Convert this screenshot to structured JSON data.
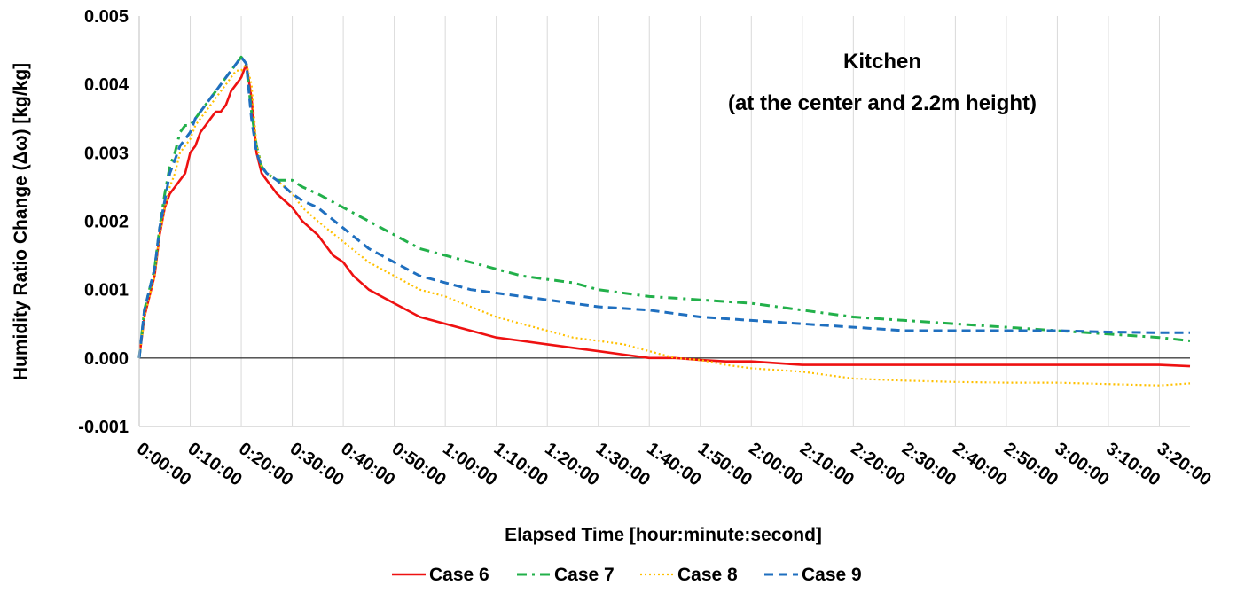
{
  "chart_data": {
    "type": "line",
    "title": "",
    "annotation_lines": [
      "Kitchen",
      "(at the center and 2.2m height)"
    ],
    "xlabel": "Elapsed Time [hour:minute:second]",
    "ylabel": "Humidity Ratio Change (Δω) [kg/kg]",
    "x_unit": "minutes",
    "xlim": [
      0,
      206
    ],
    "ylim": [
      -0.001,
      0.005
    ],
    "x_ticks": [
      0,
      10,
      20,
      30,
      40,
      50,
      60,
      70,
      80,
      90,
      100,
      110,
      120,
      130,
      140,
      150,
      160,
      170,
      180,
      190,
      200
    ],
    "x_tick_labels": [
      "0:00:00",
      "0:10:00",
      "0:20:00",
      "0:30:00",
      "0:40:00",
      "0:50:00",
      "1:00:00",
      "1:10:00",
      "1:20:00",
      "1:30:00",
      "1:40:00",
      "1:50:00",
      "2:00:00",
      "2:10:00",
      "2:20:00",
      "2:30:00",
      "2:40:00",
      "2:50:00",
      "3:00:00",
      "3:10:00",
      "3:20:00"
    ],
    "y_ticks": [
      -0.001,
      0.0,
      0.001,
      0.002,
      0.003,
      0.004,
      0.005
    ],
    "y_tick_labels": [
      "-0.001",
      "0.000",
      "0.001",
      "0.002",
      "0.003",
      "0.004",
      "0.005"
    ],
    "grid": "vertical",
    "legend_position": "bottom",
    "series": [
      {
        "name": "Case 6",
        "color": "#ee1111",
        "dash": "solid",
        "x": [
          0,
          1,
          2,
          3,
          4,
          5,
          6,
          7,
          8,
          9,
          10,
          11,
          12,
          13,
          14,
          15,
          16,
          17,
          18,
          19,
          20,
          21,
          22,
          23,
          24,
          25,
          27,
          30,
          32,
          35,
          38,
          40,
          42,
          45,
          50,
          55,
          60,
          65,
          70,
          75,
          80,
          85,
          90,
          95,
          100,
          105,
          110,
          115,
          120,
          130,
          140,
          150,
          160,
          170,
          180,
          190,
          200,
          206
        ],
        "y": [
          0.0,
          0.0006,
          0.0009,
          0.0012,
          0.0018,
          0.0022,
          0.0024,
          0.0025,
          0.0026,
          0.0027,
          0.003,
          0.0031,
          0.0033,
          0.0034,
          0.0035,
          0.0036,
          0.0036,
          0.0037,
          0.0039,
          0.004,
          0.0041,
          0.0043,
          0.0038,
          0.003,
          0.0027,
          0.0026,
          0.0024,
          0.0022,
          0.002,
          0.0018,
          0.0015,
          0.0014,
          0.0012,
          0.001,
          0.0008,
          0.0006,
          0.0005,
          0.0004,
          0.0003,
          0.00025,
          0.0002,
          0.00015,
          0.0001,
          5e-05,
          0.0,
          0.0,
          -3e-05,
          -5e-05,
          -5e-05,
          -0.0001,
          -0.0001,
          -0.0001,
          -0.0001,
          -0.0001,
          -0.0001,
          -0.0001,
          -0.0001,
          -0.00012
        ]
      },
      {
        "name": "Case 7",
        "color": "#22b04a",
        "dash": "dashdot",
        "x": [
          0,
          1,
          2,
          3,
          4,
          5,
          6,
          7,
          8,
          9,
          10,
          11,
          12,
          13,
          14,
          15,
          16,
          17,
          18,
          19,
          20,
          21,
          22,
          23,
          24,
          25,
          27,
          30,
          32,
          35,
          40,
          45,
          50,
          55,
          60,
          65,
          70,
          75,
          80,
          85,
          90,
          100,
          110,
          120,
          130,
          140,
          150,
          160,
          170,
          180,
          190,
          200,
          206
        ],
        "y": [
          0.0,
          0.0007,
          0.001,
          0.0013,
          0.0019,
          0.0024,
          0.0028,
          0.003,
          0.0033,
          0.0034,
          0.0034,
          0.0035,
          0.0036,
          0.0037,
          0.0038,
          0.0039,
          0.004,
          0.0041,
          0.0042,
          0.0043,
          0.0044,
          0.0043,
          0.0036,
          0.0031,
          0.0028,
          0.0027,
          0.0026,
          0.0026,
          0.0025,
          0.0024,
          0.0022,
          0.002,
          0.0018,
          0.0016,
          0.0015,
          0.0014,
          0.0013,
          0.0012,
          0.00115,
          0.0011,
          0.001,
          0.0009,
          0.00085,
          0.0008,
          0.0007,
          0.0006,
          0.00055,
          0.0005,
          0.00045,
          0.0004,
          0.00035,
          0.0003,
          0.00025
        ]
      },
      {
        "name": "Case 8",
        "color": "#ffc000",
        "dash": "dotted",
        "x": [
          0,
          1,
          2,
          3,
          4,
          5,
          6,
          7,
          8,
          9,
          10,
          11,
          12,
          13,
          14,
          15,
          16,
          17,
          18,
          19,
          20,
          21,
          22,
          23,
          24,
          25,
          27,
          30,
          32,
          35,
          40,
          45,
          50,
          55,
          60,
          65,
          70,
          75,
          80,
          85,
          90,
          95,
          100,
          105,
          110,
          115,
          120,
          130,
          140,
          150,
          160,
          170,
          180,
          190,
          200,
          206
        ],
        "y": [
          0.0,
          0.0006,
          0.0009,
          0.0012,
          0.0018,
          0.0022,
          0.0025,
          0.0027,
          0.003,
          0.0031,
          0.0032,
          0.0034,
          0.0035,
          0.0036,
          0.0037,
          0.0038,
          0.0039,
          0.004,
          0.0041,
          0.0042,
          0.0042,
          0.0043,
          0.004,
          0.0031,
          0.0028,
          0.0027,
          0.0026,
          0.0024,
          0.0022,
          0.002,
          0.0017,
          0.0014,
          0.0012,
          0.001,
          0.0009,
          0.00075,
          0.0006,
          0.0005,
          0.0004,
          0.0003,
          0.00025,
          0.0002,
          0.0001,
          0.0,
          -3e-05,
          -0.0001,
          -0.00015,
          -0.0002,
          -0.0003,
          -0.00033,
          -0.00035,
          -0.00036,
          -0.00036,
          -0.00038,
          -0.0004,
          -0.00037
        ]
      },
      {
        "name": "Case 9",
        "color": "#1f6fbf",
        "dash": "dashed",
        "x": [
          0,
          1,
          2,
          3,
          4,
          5,
          6,
          7,
          8,
          9,
          10,
          11,
          12,
          13,
          14,
          15,
          16,
          17,
          18,
          19,
          20,
          21,
          22,
          23,
          24,
          25,
          27,
          30,
          32,
          35,
          40,
          45,
          50,
          55,
          60,
          65,
          70,
          75,
          80,
          85,
          90,
          100,
          110,
          120,
          130,
          140,
          150,
          160,
          170,
          180,
          190,
          200,
          206
        ],
        "y": [
          0.0,
          0.0007,
          0.001,
          0.0013,
          0.0019,
          0.0023,
          0.0027,
          0.0029,
          0.0031,
          0.0032,
          0.0033,
          0.0035,
          0.0036,
          0.0037,
          0.0038,
          0.0039,
          0.004,
          0.0041,
          0.0042,
          0.0043,
          0.0044,
          0.0043,
          0.0035,
          0.003,
          0.0028,
          0.0027,
          0.0026,
          0.0024,
          0.0023,
          0.0022,
          0.0019,
          0.0016,
          0.0014,
          0.0012,
          0.0011,
          0.001,
          0.00095,
          0.0009,
          0.00085,
          0.0008,
          0.00075,
          0.0007,
          0.0006,
          0.00055,
          0.0005,
          0.00045,
          0.0004,
          0.0004,
          0.0004,
          0.0004,
          0.00038,
          0.00037,
          0.00037
        ]
      }
    ]
  }
}
